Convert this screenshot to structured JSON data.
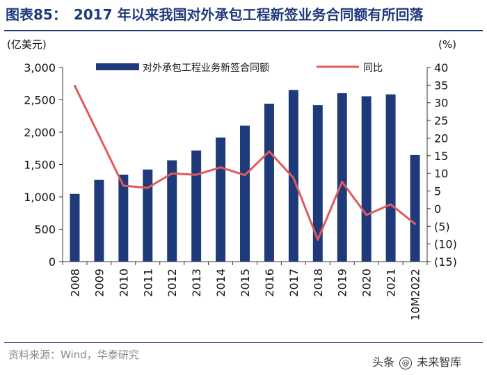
{
  "header": {
    "figure_label": "图表85：",
    "title_text": "2017 年以来我国对外承包工程新签业务合同额有所回落"
  },
  "footer": {
    "source": "资料来源：Wind，华泰研究",
    "watermark_prefix": "头条",
    "watermark_at": "@",
    "watermark_name": "未来智库"
  },
  "chart_data": {
    "type": "bar+line",
    "title": "2017 年以来我国对外承包工程新签业务合同额有所回落",
    "categories": [
      "2008",
      "2009",
      "2010",
      "2011",
      "2012",
      "2013",
      "2014",
      "2015",
      "2016",
      "2017",
      "2018",
      "2019",
      "2020",
      "2021",
      "10M2022"
    ],
    "series": [
      {
        "name": "对外承包工程业务新签合同额",
        "type": "bar",
        "axis": "left",
        "color": "#1f3a7a",
        "values": [
          1046,
          1262,
          1344,
          1423,
          1565,
          1716,
          1918,
          2101,
          2440,
          2653,
          2418,
          2603,
          2555,
          2585,
          1646
        ]
      },
      {
        "name": "同比",
        "type": "line",
        "axis": "right",
        "color": "#e05a5a",
        "values": [
          34.8,
          20.7,
          6.5,
          5.9,
          10.0,
          9.6,
          11.7,
          9.5,
          16.2,
          8.7,
          -8.8,
          7.6,
          -1.8,
          1.2,
          -4.3
        ]
      }
    ],
    "left_axis": {
      "unit": "(亿美元)",
      "ylim": [
        0,
        3000
      ],
      "ticks": [
        0,
        500,
        1000,
        1500,
        2000,
        2500,
        3000
      ],
      "tick_labels": [
        "0",
        "500",
        "1,000",
        "1,500",
        "2,000",
        "2,500",
        "3,000"
      ]
    },
    "right_axis": {
      "unit": "(%)",
      "ylim": [
        -15,
        40
      ],
      "ticks": [
        -15,
        -10,
        -5,
        0,
        5,
        10,
        15,
        20,
        25,
        30,
        35,
        40
      ],
      "tick_labels": [
        "(15)",
        "(10)",
        "(5)",
        "0",
        "5",
        "10",
        "15",
        "20",
        "25",
        "30",
        "35",
        "40"
      ]
    },
    "legend": {
      "position": "top",
      "bar_label": "对外承包工程业务新签合同额",
      "line_label": "同比"
    },
    "grid": false
  }
}
